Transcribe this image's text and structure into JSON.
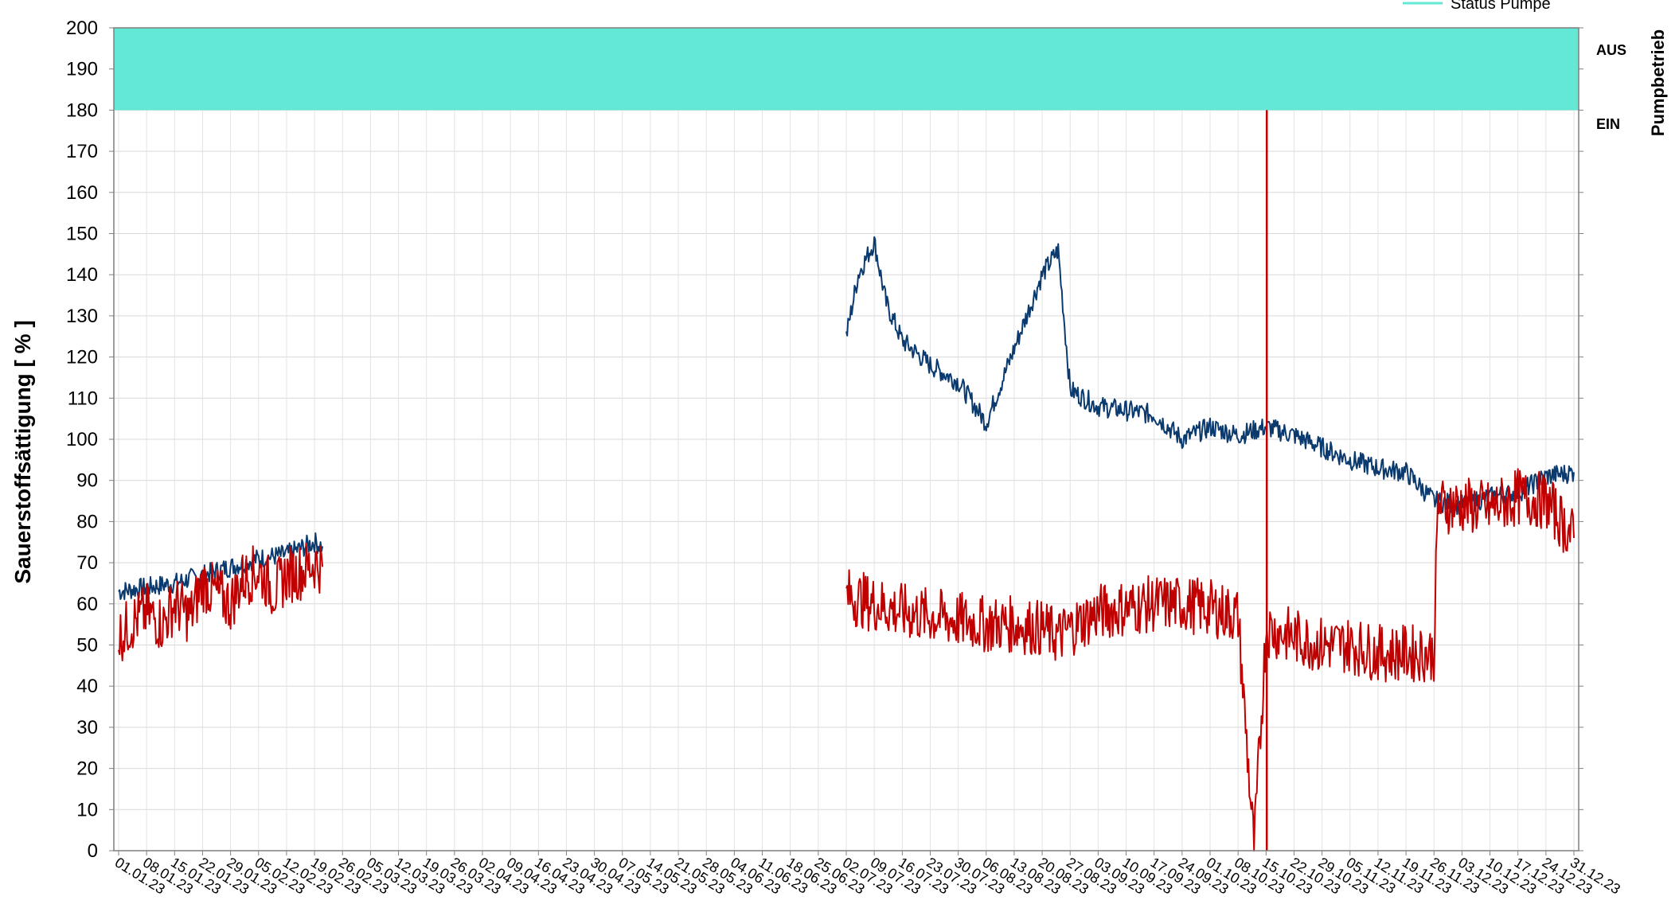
{
  "chart_data": {
    "type": "line",
    "title": "",
    "ylabel": "Sauerstoffsättigung  [ % ]",
    "y2label": "Pumpbetrieb",
    "ylim": [
      0,
      200
    ],
    "y_ticks": [
      0,
      10,
      20,
      30,
      40,
      50,
      60,
      70,
      80,
      90,
      100,
      110,
      120,
      130,
      140,
      150,
      160,
      170,
      180,
      190,
      200
    ],
    "right_ticks": [
      "AUS",
      "EIN"
    ],
    "x_tick_labels": [
      "01.01.23",
      "08.01.23",
      "15.01.23",
      "22.01.23",
      "29.01.23",
      "05.02.23",
      "12.02.23",
      "19.02.23",
      "26.02.23",
      "05.03.23",
      "12.03.23",
      "19.03.23",
      "26.03.23",
      "02.04.23",
      "09.04.23",
      "16.04.23",
      "23.04.23",
      "30.04.23",
      "07.05.23",
      "14.05.23",
      "21.05.23",
      "28.05.23",
      "04.06.23",
      "11.06.23",
      "18.06.23",
      "25.06.23",
      "02.07.23",
      "09.07.23",
      "16.07.23",
      "23.07.23",
      "30.07.23",
      "06.08.23",
      "13.08.23",
      "20.08.23",
      "27.08.23",
      "03.09.23",
      "10.09.23",
      "17.09.23",
      "24.09.23",
      "01.10.23",
      "08.10.23",
      "15.10.23",
      "22.10.23",
      "29.10.23",
      "05.11.23",
      "12.11.23",
      "19.11.23",
      "26.11.23",
      "03.12.23",
      "10.12.23",
      "17.12.23",
      "24.12.23",
      "31.12.23"
    ],
    "legend_entry": "Status Pumpe",
    "grid": true,
    "colors": {
      "series_blue": "#0b3a6e",
      "series_red": "#c00000",
      "status_band": "#63e8d6"
    },
    "status_band": {
      "label": "Status Pumpe",
      "y_from": 180,
      "y_to": 200,
      "state": "AUS"
    },
    "series": [
      {
        "key": "blue",
        "segments": [
          {
            "x": [
              "01.01.23",
              "08.01.23",
              "15.01.23",
              "22.01.23",
              "29.01.23",
              "05.02.23",
              "12.02.23",
              "19.02.23",
              "21.02.23"
            ],
            "y": [
              63,
              64,
              65,
              67,
              69,
              71,
              72,
              75,
              74
            ]
          },
          {
            "x": [
              "02.07.23",
              "05.07.23",
              "09.07.23",
              "12.07.23",
              "16.07.23",
              "23.07.23",
              "30.07.23",
              "06.08.23",
              "13.08.23",
              "20.08.23",
              "24.08.23",
              "27.08.23",
              "03.09.23",
              "10.09.23",
              "17.09.23",
              "24.09.23",
              "01.10.23",
              "08.10.23",
              "15.10.23",
              "22.10.23",
              "29.10.23",
              "05.11.23",
              "12.11.23",
              "19.11.23",
              "26.11.23",
              "03.12.23",
              "10.12.23",
              "17.12.23",
              "24.12.23",
              "31.12.23"
            ],
            "y": [
              125,
              140,
              148,
              133,
              124,
              118,
              114,
              104,
              122,
              140,
              146,
              112,
              108,
              107,
              106,
              100,
              103,
              101,
              103,
              101,
              98,
              95,
              93,
              92,
              85,
              84,
              86,
              87,
              91,
              92
            ]
          }
        ]
      },
      {
        "key": "red",
        "segments": [
          {
            "x": [
              "01.01.23",
              "05.01.23",
              "08.01.23",
              "12.01.23",
              "15.01.23",
              "19.01.23",
              "22.01.23",
              "26.01.23",
              "29.01.23",
              "01.02.23",
              "05.02.23",
              "09.02.23",
              "12.02.23",
              "16.02.23",
              "19.02.23",
              "21.02.23"
            ],
            "y": [
              52,
              56,
              58,
              55,
              60,
              57,
              65,
              62,
              60,
              66,
              68,
              63,
              67,
              68,
              70,
              69
            ]
          },
          {
            "x": [
              "02.07.23",
              "09.07.23",
              "16.07.23",
              "23.07.23",
              "30.07.23",
              "06.08.23",
              "13.08.23",
              "20.08.23",
              "24.08.23",
              "27.08.23",
              "03.09.23",
              "10.09.23",
              "17.09.23",
              "24.09.23",
              "01.10.23",
              "05.10.23",
              "08.10.23",
              "12.10.23",
              "15.10.23",
              "22.10.23",
              "29.10.23",
              "05.11.23",
              "12.11.23",
              "19.11.23",
              "26.11.23",
              "27.11.23",
              "03.12.23",
              "10.12.23",
              "17.12.23",
              "24.12.23",
              "31.12.23"
            ],
            "y": [
              62,
              60,
              58,
              57,
              56,
              55,
              55,
              54,
              52,
              54,
              58,
              59,
              60,
              60,
              59,
              58,
              57,
              0,
              54,
              52,
              50,
              50,
              48,
              48,
              48,
              84,
              84,
              83,
              86,
              85,
              76
            ]
          }
        ]
      }
    ]
  }
}
